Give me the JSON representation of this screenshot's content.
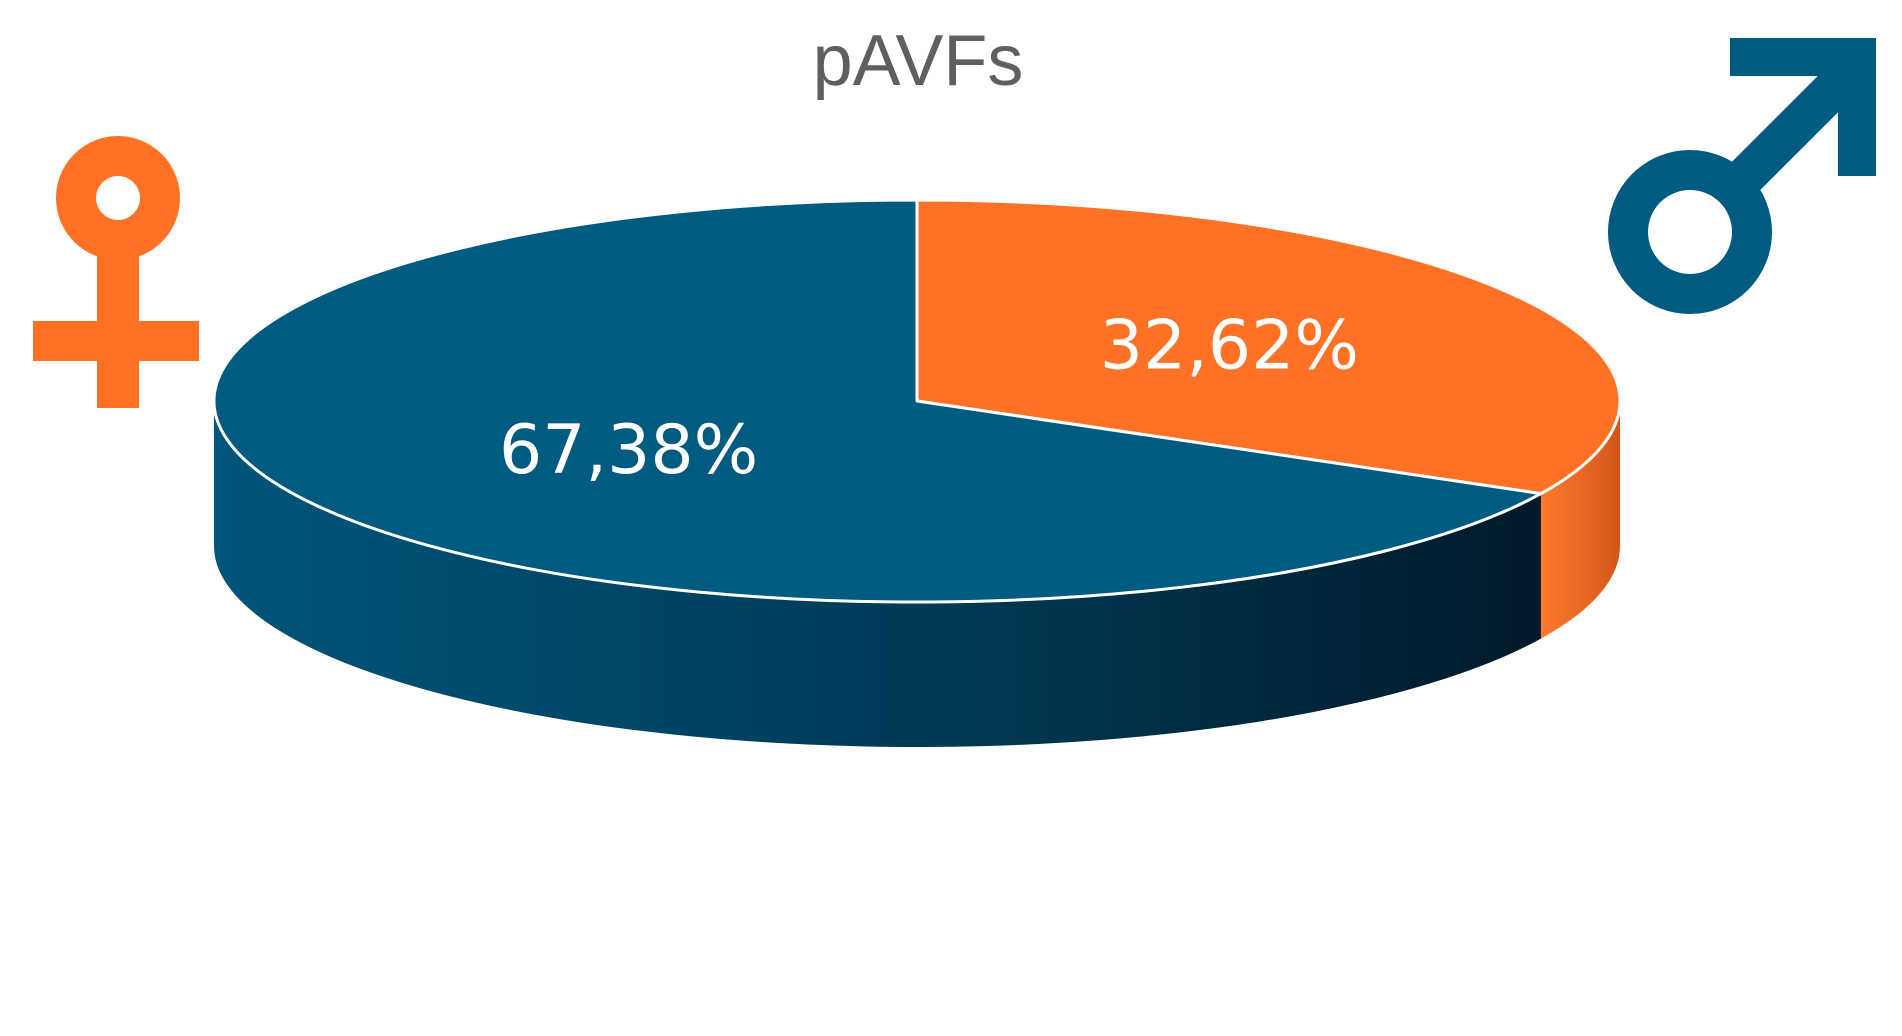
{
  "chart_data": {
    "type": "pie",
    "style": "3d",
    "title": "pAVFs",
    "slices": [
      {
        "label": "32,62%",
        "value": 32.62,
        "color": "#ff7125",
        "side_color": "#d9581a",
        "icon": "female-symbol-icon"
      },
      {
        "label": "67,38%",
        "value": 67.38,
        "color": "#005b80",
        "side_color": "#003a55",
        "icon": "male-symbol-icon"
      }
    ],
    "start_angle_deg": 90,
    "direction": "clockwise",
    "legend": "none",
    "icons": {
      "female": {
        "name": "female-symbol-icon",
        "color": "#ff7125"
      },
      "male": {
        "name": "male-symbol-icon",
        "color": "#005b80"
      }
    }
  }
}
